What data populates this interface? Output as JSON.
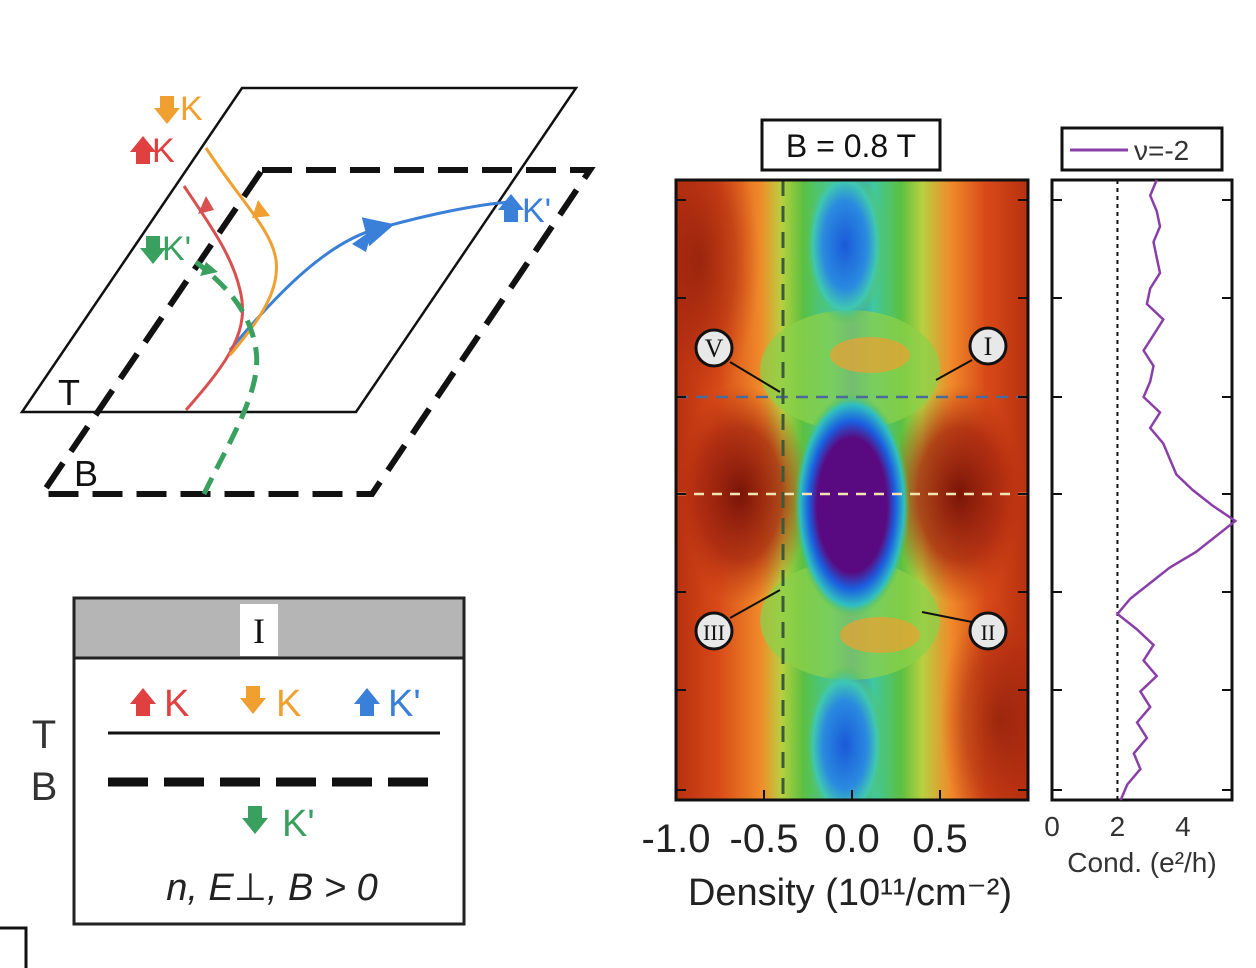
{
  "schematic": {
    "planes": {
      "top": "T",
      "bottom": "B"
    },
    "channels": [
      {
        "spin": "down",
        "valley": "K",
        "color": "#f0a030"
      },
      {
        "spin": "up",
        "valley": "K",
        "color": "#e04040"
      },
      {
        "spin": "down",
        "valley": "K'",
        "color": "#3aa060"
      },
      {
        "spin": "up",
        "valley": "K'",
        "color": "#3a7fd8"
      }
    ]
  },
  "legend_table": {
    "header": "I",
    "row_T": "T",
    "row_B": "B",
    "T_channels": [
      {
        "label": "K",
        "spin": "up",
        "color": "#e04040"
      },
      {
        "label": "K",
        "spin": "down",
        "color": "#f0a030"
      },
      {
        "label": "K'",
        "spin": "up",
        "color": "#3a7fd8"
      }
    ],
    "B_channels": [
      {
        "label": "K'",
        "spin": "down",
        "color": "#3aa060"
      }
    ],
    "condition": "n, E⊥, B > 0"
  },
  "chart_data": [
    {
      "type": "heatmap",
      "title": "B = 0.8 T",
      "xlabel": "Density (10¹¹/cm⁻²)",
      "x_ticks": [
        "-1.0",
        "-0.5",
        "0.0",
        "0.5"
      ],
      "xlim": [
        -1.0,
        1.0
      ],
      "colormap": "red-orange-green-blue-purple",
      "region_labels": [
        "V",
        "I",
        "III",
        "II"
      ]
    },
    {
      "type": "line",
      "title": "ν=-2",
      "xlabel": "Cond. (e²/h)",
      "x_ticks": [
        "0",
        "2",
        "4"
      ],
      "xlim": [
        0,
        5.5
      ],
      "reference_line": 2,
      "series": [
        {
          "name": "ν=-2",
          "color": "#8a3fa8",
          "x": [
            3.2,
            3.0,
            3.2,
            3.3,
            3.1,
            3.2,
            3.3,
            3.0,
            2.9,
            3.4,
            3.1,
            2.8,
            3.1,
            3.0,
            2.8,
            3.3,
            3.0,
            3.4,
            3.6,
            3.8,
            4.3,
            4.9,
            5.6,
            5.0,
            4.4,
            3.6,
            3.0,
            2.4,
            2.0,
            2.6,
            3.1,
            2.8,
            3.2,
            2.7,
            3.0,
            2.6,
            2.9,
            2.5,
            2.7,
            2.3,
            2.1
          ],
          "y": [
            0,
            0.025,
            0.05,
            0.075,
            0.1,
            0.125,
            0.15,
            0.175,
            0.2,
            0.225,
            0.25,
            0.275,
            0.3,
            0.325,
            0.35,
            0.375,
            0.4,
            0.425,
            0.45,
            0.475,
            0.5,
            0.525,
            0.55,
            0.575,
            0.6,
            0.625,
            0.65,
            0.675,
            0.7,
            0.725,
            0.75,
            0.775,
            0.8,
            0.825,
            0.85,
            0.875,
            0.9,
            0.925,
            0.95,
            0.975,
            1.0
          ]
        }
      ]
    }
  ]
}
